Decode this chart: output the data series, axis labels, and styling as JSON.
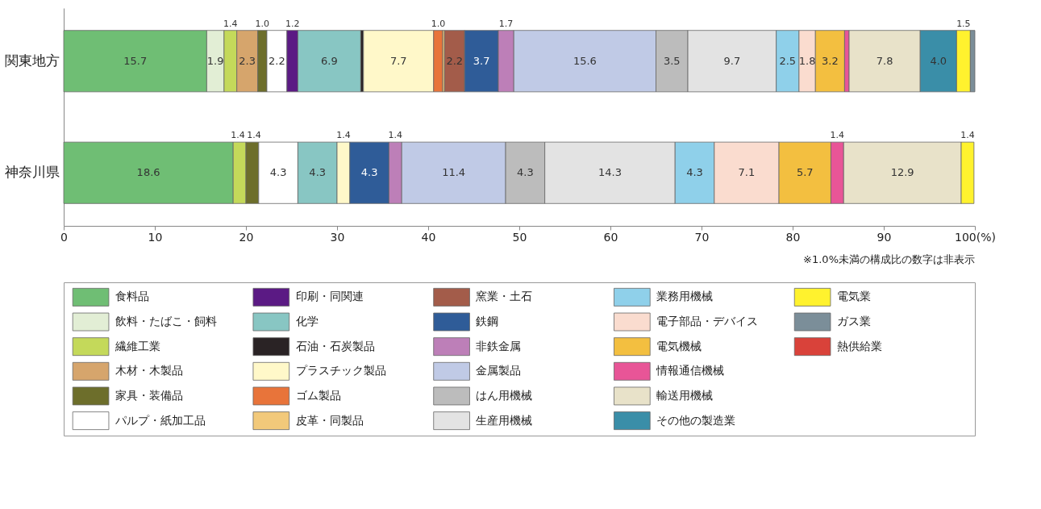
{
  "chart_data": {
    "type": "bar",
    "orientation": "horizontal",
    "stacked": true,
    "categories": [
      "関東地方",
      "神奈川県"
    ],
    "xlim": [
      0,
      100
    ],
    "xticks": [
      0,
      10,
      20,
      30,
      40,
      50,
      60,
      70,
      80,
      90,
      {
        "value": 100,
        "label": "100(%)"
      }
    ],
    "grid": false,
    "legend": "bottom",
    "annotations": [
      "※1.0%未満の構成比の数字は非表示"
    ],
    "series": [
      {
        "name": "食料品",
        "color": "#6fbe74",
        "values": [
          15.7,
          18.6
        ],
        "value_labels": [
          "15.7",
          "18.6"
        ]
      },
      {
        "name": "飲料・たばこ・飼料",
        "color": "#e2eed5",
        "values": [
          1.9,
          null
        ],
        "value_labels": [
          "1.9",
          null
        ]
      },
      {
        "name": "繊維工業",
        "color": "#c4d95a",
        "values": [
          1.4,
          1.4
        ],
        "value_labels": [
          "1.4",
          "1.4"
        ]
      },
      {
        "name": "木材・木製品",
        "color": "#d6a56c",
        "values": [
          2.3,
          null
        ],
        "value_labels": [
          "2.3",
          null
        ]
      },
      {
        "name": "家具・装備品",
        "color": "#6d6e2b",
        "values": [
          1.0,
          1.4
        ],
        "value_labels": [
          "1.0",
          "1.4"
        ]
      },
      {
        "name": "パルプ・紙加工品",
        "color": "#ffffff",
        "values": [
          2.2,
          4.3
        ],
        "value_labels": [
          "2.2",
          "4.3"
        ]
      },
      {
        "name": "印刷・同関連",
        "color": "#5b1a84",
        "values": [
          1.2,
          null
        ],
        "value_labels": [
          "1.2",
          null
        ]
      },
      {
        "name": "化学",
        "color": "#88c6c3",
        "values": [
          6.9,
          4.3
        ],
        "value_labels": [
          "6.9",
          "4.3"
        ]
      },
      {
        "name": "石油・石炭製品",
        "color": "#2a2325",
        "values": [
          0.3,
          null
        ],
        "value_labels": [
          null,
          null
        ]
      },
      {
        "name": "プラスチック製品",
        "color": "#fff8c9",
        "values": [
          7.7,
          1.4
        ],
        "value_labels": [
          "7.7",
          "1.4"
        ]
      },
      {
        "name": "ゴム製品",
        "color": "#e8743a",
        "values": [
          1.0,
          null
        ],
        "value_labels": [
          "1.0",
          null
        ]
      },
      {
        "name": "皮革・同製品",
        "color": "#f2c97a",
        "values": [
          0.2,
          null
        ],
        "value_labels": [
          null,
          null
        ]
      },
      {
        "name": "窯業・土石",
        "color": "#a35c4a",
        "values": [
          2.2,
          null
        ],
        "value_labels": [
          "2.2",
          null
        ]
      },
      {
        "name": "鉄鋼",
        "color": "#2f5c98",
        "values": [
          3.7,
          4.3
        ],
        "value_labels": [
          "3.7",
          "4.3"
        ]
      },
      {
        "name": "非鉄金属",
        "color": "#bd7fb8",
        "values": [
          1.7,
          1.4
        ],
        "value_labels": [
          "1.7",
          "1.4"
        ]
      },
      {
        "name": "金属製品",
        "color": "#c0cae6",
        "values": [
          15.6,
          11.4
        ],
        "value_labels": [
          "15.6",
          "11.4"
        ]
      },
      {
        "name": "はん用機械",
        "color": "#bcbcbc",
        "values": [
          3.5,
          4.3
        ],
        "value_labels": [
          "3.5",
          "4.3"
        ]
      },
      {
        "name": "生産用機械",
        "color": "#e3e3e3",
        "values": [
          9.7,
          14.3
        ],
        "value_labels": [
          "9.7",
          "14.3"
        ]
      },
      {
        "name": "業務用機械",
        "color": "#8fd0ea",
        "values": [
          2.5,
          4.3
        ],
        "value_labels": [
          "2.5",
          "4.3"
        ]
      },
      {
        "name": "電子部品・デバイス",
        "color": "#fadccf",
        "values": [
          1.8,
          7.1
        ],
        "value_labels": [
          "1.8",
          "7.1"
        ]
      },
      {
        "name": "電気機械",
        "color": "#f3bf40",
        "values": [
          3.2,
          5.7
        ],
        "value_labels": [
          "3.2",
          "5.7"
        ]
      },
      {
        "name": "情報通信機械",
        "color": "#e85597",
        "values": [
          0.5,
          1.4
        ],
        "value_labels": [
          null,
          "1.4"
        ]
      },
      {
        "name": "輸送用機械",
        "color": "#e8e2c9",
        "values": [
          7.8,
          12.9
        ],
        "value_labels": [
          "7.8",
          "12.9"
        ]
      },
      {
        "name": "その他の製造業",
        "color": "#3a8ea8",
        "values": [
          4.0,
          null
        ],
        "value_labels": [
          "4.0",
          null
        ]
      },
      {
        "name": "電気業",
        "color": "#fff22e",
        "values": [
          1.5,
          1.4
        ],
        "value_labels": [
          "1.5",
          "1.4"
        ]
      },
      {
        "name": "ガス業",
        "color": "#7b8e99",
        "values": [
          0.5,
          null
        ],
        "value_labels": [
          null,
          null
        ]
      },
      {
        "name": "熱供給業",
        "color": "#d9423a",
        "values": [
          null,
          null
        ],
        "value_labels": [
          null,
          null
        ]
      }
    ]
  }
}
